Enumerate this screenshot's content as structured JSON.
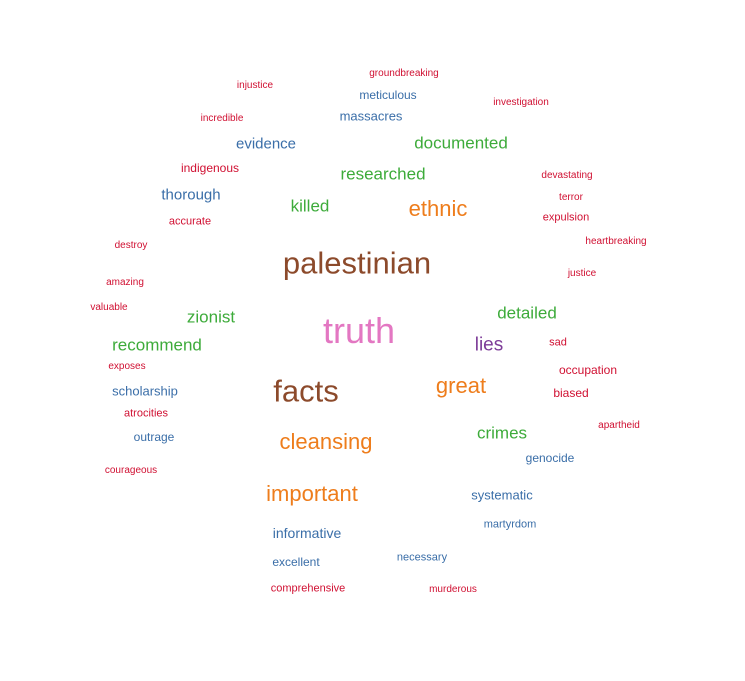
{
  "colors": {
    "pink": "#e377c2",
    "brown": "#8c4a2b",
    "orange": "#ee7d1c",
    "green": "#3dab3a",
    "blue": "#3a6ea8",
    "purple": "#7d3c98",
    "red": "#d01032"
  },
  "words": [
    {
      "text": "truth",
      "color": "pink"
    },
    {
      "text": "palestinian",
      "color": "brown"
    },
    {
      "text": "facts",
      "color": "brown"
    },
    {
      "text": "ethnic",
      "color": "orange"
    },
    {
      "text": "great",
      "color": "orange"
    },
    {
      "text": "cleansing",
      "color": "orange"
    },
    {
      "text": "important",
      "color": "orange"
    },
    {
      "text": "documented",
      "color": "green"
    },
    {
      "text": "researched",
      "color": "green"
    },
    {
      "text": "killed",
      "color": "green"
    },
    {
      "text": "zionist",
      "color": "green"
    },
    {
      "text": "recommend",
      "color": "green"
    },
    {
      "text": "detailed",
      "color": "green"
    },
    {
      "text": "crimes",
      "color": "green"
    },
    {
      "text": "lies",
      "color": "purple"
    },
    {
      "text": "evidence",
      "color": "blue"
    },
    {
      "text": "thorough",
      "color": "blue"
    },
    {
      "text": "meticulous",
      "color": "blue"
    },
    {
      "text": "massacres",
      "color": "blue"
    },
    {
      "text": "scholarship",
      "color": "blue"
    },
    {
      "text": "outrage",
      "color": "blue"
    },
    {
      "text": "genocide",
      "color": "blue"
    },
    {
      "text": "systematic",
      "color": "blue"
    },
    {
      "text": "informative",
      "color": "blue"
    },
    {
      "text": "martyrdom",
      "color": "blue"
    },
    {
      "text": "excellent",
      "color": "blue"
    },
    {
      "text": "necessary",
      "color": "blue"
    },
    {
      "text": "groundbreaking",
      "color": "red"
    },
    {
      "text": "injustice",
      "color": "red"
    },
    {
      "text": "investigation",
      "color": "red"
    },
    {
      "text": "incredible",
      "color": "red"
    },
    {
      "text": "indigenous",
      "color": "red"
    },
    {
      "text": "devastating",
      "color": "red"
    },
    {
      "text": "terror",
      "color": "red"
    },
    {
      "text": "accurate",
      "color": "red"
    },
    {
      "text": "expulsion",
      "color": "red"
    },
    {
      "text": "destroy",
      "color": "red"
    },
    {
      "text": "heartbreaking",
      "color": "red"
    },
    {
      "text": "justice",
      "color": "red"
    },
    {
      "text": "amazing",
      "color": "red"
    },
    {
      "text": "valuable",
      "color": "red"
    },
    {
      "text": "sad",
      "color": "red"
    },
    {
      "text": "exposes",
      "color": "red"
    },
    {
      "text": "occupation",
      "color": "red"
    },
    {
      "text": "biased",
      "color": "red"
    },
    {
      "text": "atrocities",
      "color": "red"
    },
    {
      "text": "apartheid",
      "color": "red"
    },
    {
      "text": "courageous",
      "color": "red"
    },
    {
      "text": "comprehensive",
      "color": "red"
    },
    {
      "text": "murderous",
      "color": "red"
    }
  ]
}
